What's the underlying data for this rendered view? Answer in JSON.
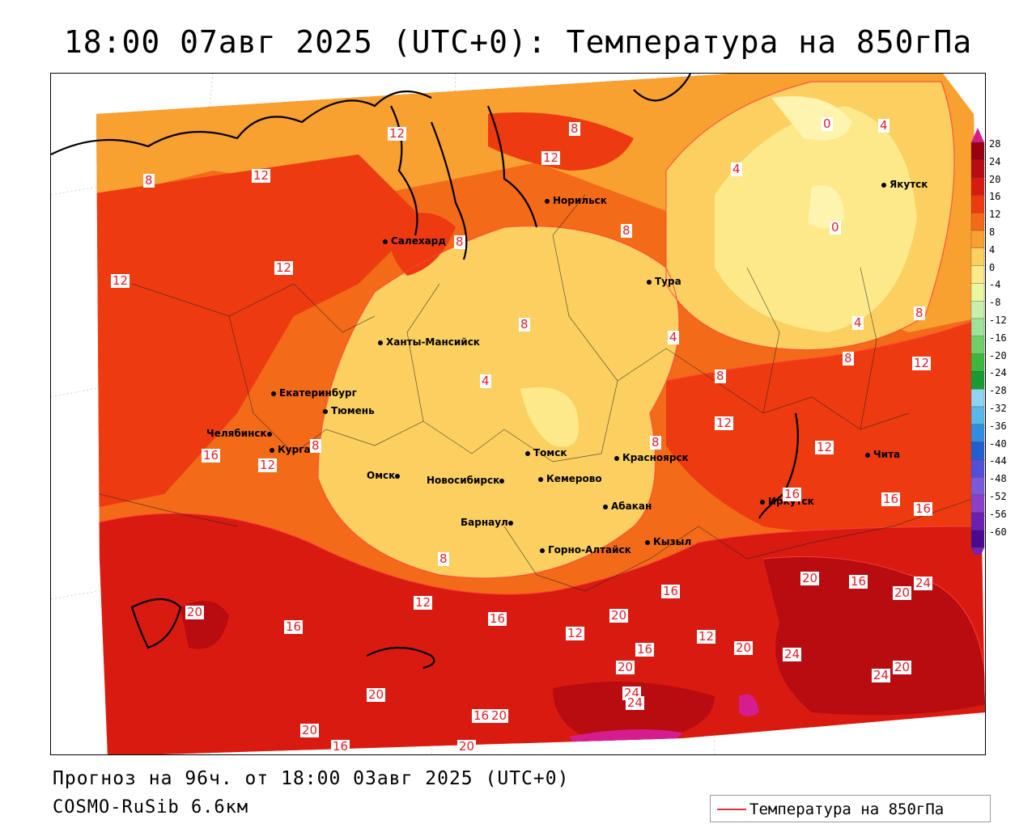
{
  "title": "18:00 07авг 2025 (UTC+0): Температура на 850гПа",
  "forecast_text": "Прогноз на 96ч. от 18:00 03авг 2025 (UTC+0)",
  "model_text": "COSMO-RuSib 6.6км",
  "legend": {
    "label": "Температура на 850гПа",
    "line_color": "#e0303a"
  },
  "colorbar": {
    "ticks": [
      "28",
      "24",
      "20",
      "16",
      "12",
      "8",
      "4",
      "0",
      "-4",
      "-8",
      "-12",
      "-16",
      "-20",
      "-24",
      "-28",
      "-32",
      "-36",
      "-40",
      "-44",
      "-48",
      "-52",
      "-56",
      "-60"
    ],
    "colors": [
      "#9a0010",
      "#b80c10",
      "#d91a10",
      "#ee3a10",
      "#f36a18",
      "#f8a030",
      "#fbcf60",
      "#fde88a",
      "#e8f7a0",
      "#c8efb0",
      "#9ee39a",
      "#6fd06a",
      "#3db83e",
      "#1a9a32",
      "#8ed6f0",
      "#58b8ec",
      "#2f8ee0",
      "#1f5fd0",
      "#5050d8",
      "#7a5ad8",
      "#8a40c8",
      "#6a20b0",
      "#4a0a90"
    ],
    "top_arrow_color": "#d61d8f",
    "bottom_arrow_color": "#7a20b0"
  },
  "cities": [
    {
      "name": "Норильск"
    },
    {
      "name": "Якутск"
    },
    {
      "name": "Салехард"
    },
    {
      "name": "Тура"
    },
    {
      "name": "Ханты-Мансийск"
    },
    {
      "name": "Екатеринбург"
    },
    {
      "name": "Тюмень"
    },
    {
      "name": "Челябинск"
    },
    {
      "name": "Курган"
    },
    {
      "name": "Омск"
    },
    {
      "name": "Новосибирск"
    },
    {
      "name": "Томск"
    },
    {
      "name": "Кемерово"
    },
    {
      "name": "Красноярск"
    },
    {
      "name": "Барнаул"
    },
    {
      "name": "Абакан"
    },
    {
      "name": "Кызыл"
    },
    {
      "name": "Горно-Алтайск"
    },
    {
      "name": "Иркутск"
    },
    {
      "name": "Чита"
    }
  ],
  "contour_labels": [
    "12",
    "8",
    "12",
    "0",
    "4",
    "12",
    "4",
    "0",
    "8",
    "12",
    "8",
    "12",
    "8",
    "8",
    "4",
    "4",
    "8",
    "12",
    "4",
    "8",
    "12",
    "8",
    "16",
    "12",
    "8",
    "12",
    "16",
    "16",
    "16",
    "16",
    "8",
    "20",
    "12",
    "16",
    "20",
    "16",
    "12",
    "20",
    "16",
    "12",
    "20",
    "20",
    "24",
    "24",
    "20",
    "16",
    "24",
    "20",
    "24",
    "24",
    "20",
    "16",
    "20",
    "20",
    "16",
    "20",
    "8"
  ]
}
